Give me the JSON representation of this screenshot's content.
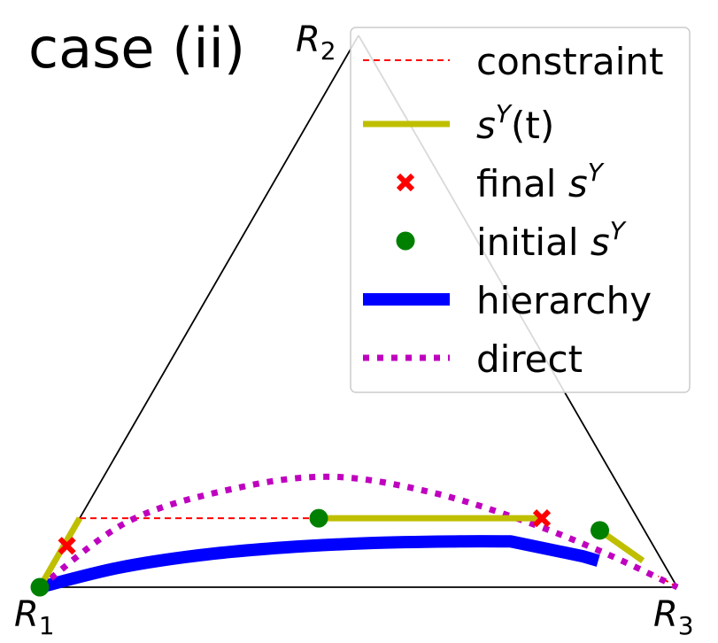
{
  "chart_data": {
    "type": "line",
    "title": "case (ii)",
    "vertices": [
      {
        "base": "R",
        "sub": "1"
      },
      {
        "base": "R",
        "sub": "2"
      },
      {
        "base": "R",
        "sub": "3"
      }
    ],
    "grid": false,
    "legend_position": "top-right",
    "coordinate_system": "ternary simplex (R1, R2, R3 weights)",
    "series": [
      {
        "name": "constraint",
        "key": "constraint",
        "color": "#ff0000",
        "style": "dashed",
        "segments": [
          [
            [
              0.875,
              0.125,
              0.0
            ],
            [
              0.15,
              0.125,
              0.725
            ]
          ],
          [
            [
              0.0,
              0.0,
              1.0
            ],
            [
              0.02,
              0.02,
              0.96
            ]
          ]
        ]
      },
      {
        "name": "s^Y(t)",
        "key": "sY_t",
        "color": "#bfbf00",
        "style": "solid",
        "segments": [
          [
            [
              0.875,
              0.125,
              0.0
            ],
            [
              1.0,
              0.0,
              0.0
            ]
          ],
          [
            [
              0.5,
              0.125,
              0.375
            ],
            [
              0.15,
              0.125,
              0.725
            ]
          ],
          [
            [
              0.07,
              0.103,
              0.827
            ],
            [
              0.03,
              0.048,
              0.922
            ]
          ]
        ]
      },
      {
        "name": "final s^Y",
        "key": "final_sY",
        "color": "#ff0000",
        "marker": "x",
        "points": [
          [
            0.92,
            0.075,
            0.005
          ],
          [
            0.15,
            0.125,
            0.725
          ]
        ]
      },
      {
        "name": "initial s^Y",
        "key": "initial_sY",
        "color": "#008000",
        "marker": "o",
        "points": [
          [
            1.0,
            0.0,
            0.0
          ],
          [
            0.5,
            0.125,
            0.375
          ],
          [
            0.07,
            0.103,
            0.827
          ]
        ]
      },
      {
        "name": "hierarchy",
        "key": "hierarchy",
        "color": "#0000ff",
        "style": "solid",
        "points": [
          [
            1.0,
            0.0,
            0.0
          ],
          [
            0.86,
            0.035,
            0.105
          ],
          [
            0.72,
            0.058,
            0.222
          ],
          [
            0.58,
            0.072,
            0.348
          ],
          [
            0.44,
            0.08,
            0.48
          ],
          [
            0.3,
            0.083,
            0.617
          ],
          [
            0.22,
            0.083,
            0.697
          ],
          [
            0.12,
            0.056,
            0.824
          ],
          [
            0.1,
            0.048,
            0.852
          ]
        ]
      },
      {
        "name": "direct",
        "key": "direct",
        "color": "#bf00bf",
        "style": "dotted",
        "points": [
          [
            1.0,
            0.0,
            0.0
          ],
          [
            0.8,
            0.12,
            0.08
          ],
          [
            0.6,
            0.18,
            0.22
          ],
          [
            0.44,
            0.2,
            0.36
          ],
          [
            0.3,
            0.172,
            0.528
          ],
          [
            0.18,
            0.12,
            0.7
          ],
          [
            0.08,
            0.06,
            0.86
          ],
          [
            0.0,
            0.0,
            1.0
          ]
        ]
      }
    ],
    "legend": [
      {
        "key": "constraint",
        "label": "constraint"
      },
      {
        "key": "sY_t",
        "label_prefix": "",
        "label_math": "s",
        "label_sup": "Y",
        "label_suffix": "(t)"
      },
      {
        "key": "final_sY",
        "label_prefix": "final ",
        "label_math": "s",
        "label_sup": "Y",
        "label_suffix": ""
      },
      {
        "key": "initial_sY",
        "label_prefix": "initial ",
        "label_math": "s",
        "label_sup": "Y",
        "label_suffix": ""
      },
      {
        "key": "hierarchy",
        "label": "hierarchy"
      },
      {
        "key": "direct",
        "label": "direct"
      }
    ]
  }
}
